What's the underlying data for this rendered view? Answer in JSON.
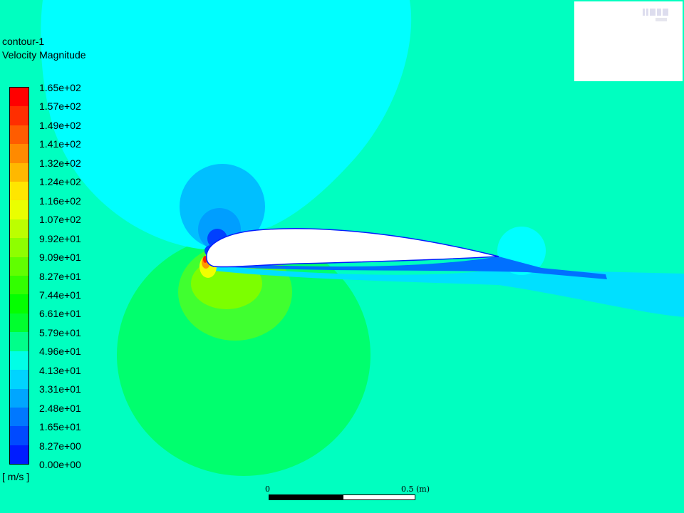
{
  "contour": {
    "name": "contour-1",
    "variable": "Velocity Magnitude",
    "units": "[ m/s ]"
  },
  "legend": {
    "labels": [
      "1.65e+02",
      "1.57e+02",
      "1.49e+02",
      "1.41e+02",
      "1.32e+02",
      "1.24e+02",
      "1.16e+02",
      "1.07e+02",
      "9.92e+01",
      "9.09e+01",
      "8.27e+01",
      "7.44e+01",
      "6.61e+01",
      "5.79e+01",
      "4.96e+01",
      "4.13e+01",
      "3.31e+01",
      "2.48e+01",
      "1.65e+01",
      "8.27e+00",
      "0.00e+00"
    ],
    "colors": [
      "#ff0000",
      "#ff2e00",
      "#ff5c00",
      "#ff8a00",
      "#ffb800",
      "#ffe600",
      "#eaff00",
      "#bcff00",
      "#8eff00",
      "#60ff00",
      "#32ff00",
      "#04ff00",
      "#00ff2e",
      "#00ff8a",
      "#00ffe6",
      "#00d4ff",
      "#00a6ff",
      "#0078ff",
      "#004aff",
      "#001cff"
    ]
  },
  "scale_bar": {
    "start_label": "0",
    "end_label": "0.5 (m)"
  },
  "field_colors": {
    "background": "#00ffc0",
    "far_upper": "#00ffff",
    "upper_mid": "#00e6ff",
    "upper_inner": "#00bfff",
    "upper_core": "#009eff",
    "upper_stag": "#0040ff",
    "lower_outer": "#00ff6e",
    "lower_mid": "#40ff30",
    "lower_inner": "#20ff10",
    "lower_core": "#7cff00",
    "peak_yellow": "#f0ff00",
    "peak_orange": "#ff9900",
    "peak_red": "#ff2000",
    "wake": "#00e0ff",
    "wake_dark": "#0070ff",
    "airfoil": "#ffffff"
  }
}
